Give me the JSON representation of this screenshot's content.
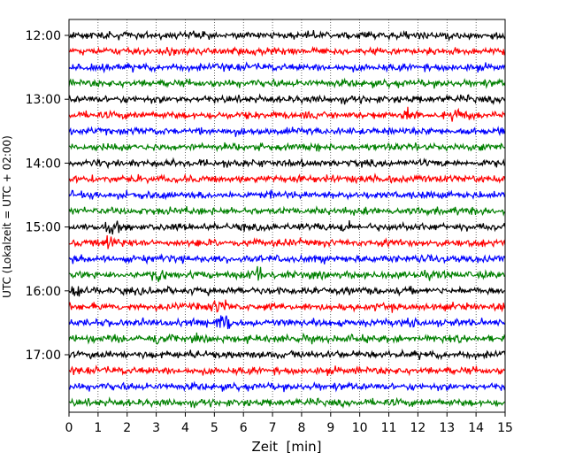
{
  "chart_data": {
    "type": "line",
    "title": "",
    "xlabel": "Zeit  [min]",
    "ylabel": "UTC (Lokalzeit = UTC + 02:00)",
    "xlim": [
      0,
      15
    ],
    "x_ticks": [
      "0",
      "1",
      "2",
      "3",
      "4",
      "5",
      "6",
      "7",
      "8",
      "9",
      "10",
      "11",
      "12",
      "13",
      "14",
      "15"
    ],
    "y_tick_labels": [
      "12:00",
      "13:00",
      "14:00",
      "15:00",
      "16:00",
      "17:00"
    ],
    "trace_interval_min": 15,
    "grid": "vertical-dotted",
    "colors": [
      "#000000",
      "#ff0000",
      "#0000ff",
      "#008000"
    ],
    "traces": [
      {
        "start": "12:00",
        "color": "#000000"
      },
      {
        "start": "12:15",
        "color": "#ff0000"
      },
      {
        "start": "12:30",
        "color": "#0000ff"
      },
      {
        "start": "12:45",
        "color": "#008000"
      },
      {
        "start": "13:00",
        "color": "#000000"
      },
      {
        "start": "13:15",
        "color": "#ff0000"
      },
      {
        "start": "13:30",
        "color": "#0000ff"
      },
      {
        "start": "13:45",
        "color": "#008000"
      },
      {
        "start": "14:00",
        "color": "#000000"
      },
      {
        "start": "14:15",
        "color": "#ff0000"
      },
      {
        "start": "14:30",
        "color": "#0000ff"
      },
      {
        "start": "14:45",
        "color": "#008000"
      },
      {
        "start": "15:00",
        "color": "#000000"
      },
      {
        "start": "15:15",
        "color": "#ff0000"
      },
      {
        "start": "15:30",
        "color": "#0000ff"
      },
      {
        "start": "15:45",
        "color": "#008000"
      },
      {
        "start": "16:00",
        "color": "#000000"
      },
      {
        "start": "16:15",
        "color": "#ff0000"
      },
      {
        "start": "16:30",
        "color": "#0000ff"
      },
      {
        "start": "16:45",
        "color": "#008000"
      },
      {
        "start": "17:00",
        "color": "#000000"
      },
      {
        "start": "17:15",
        "color": "#ff0000"
      },
      {
        "start": "17:30",
        "color": "#0000ff"
      },
      {
        "start": "17:45",
        "color": "#008000"
      }
    ]
  }
}
